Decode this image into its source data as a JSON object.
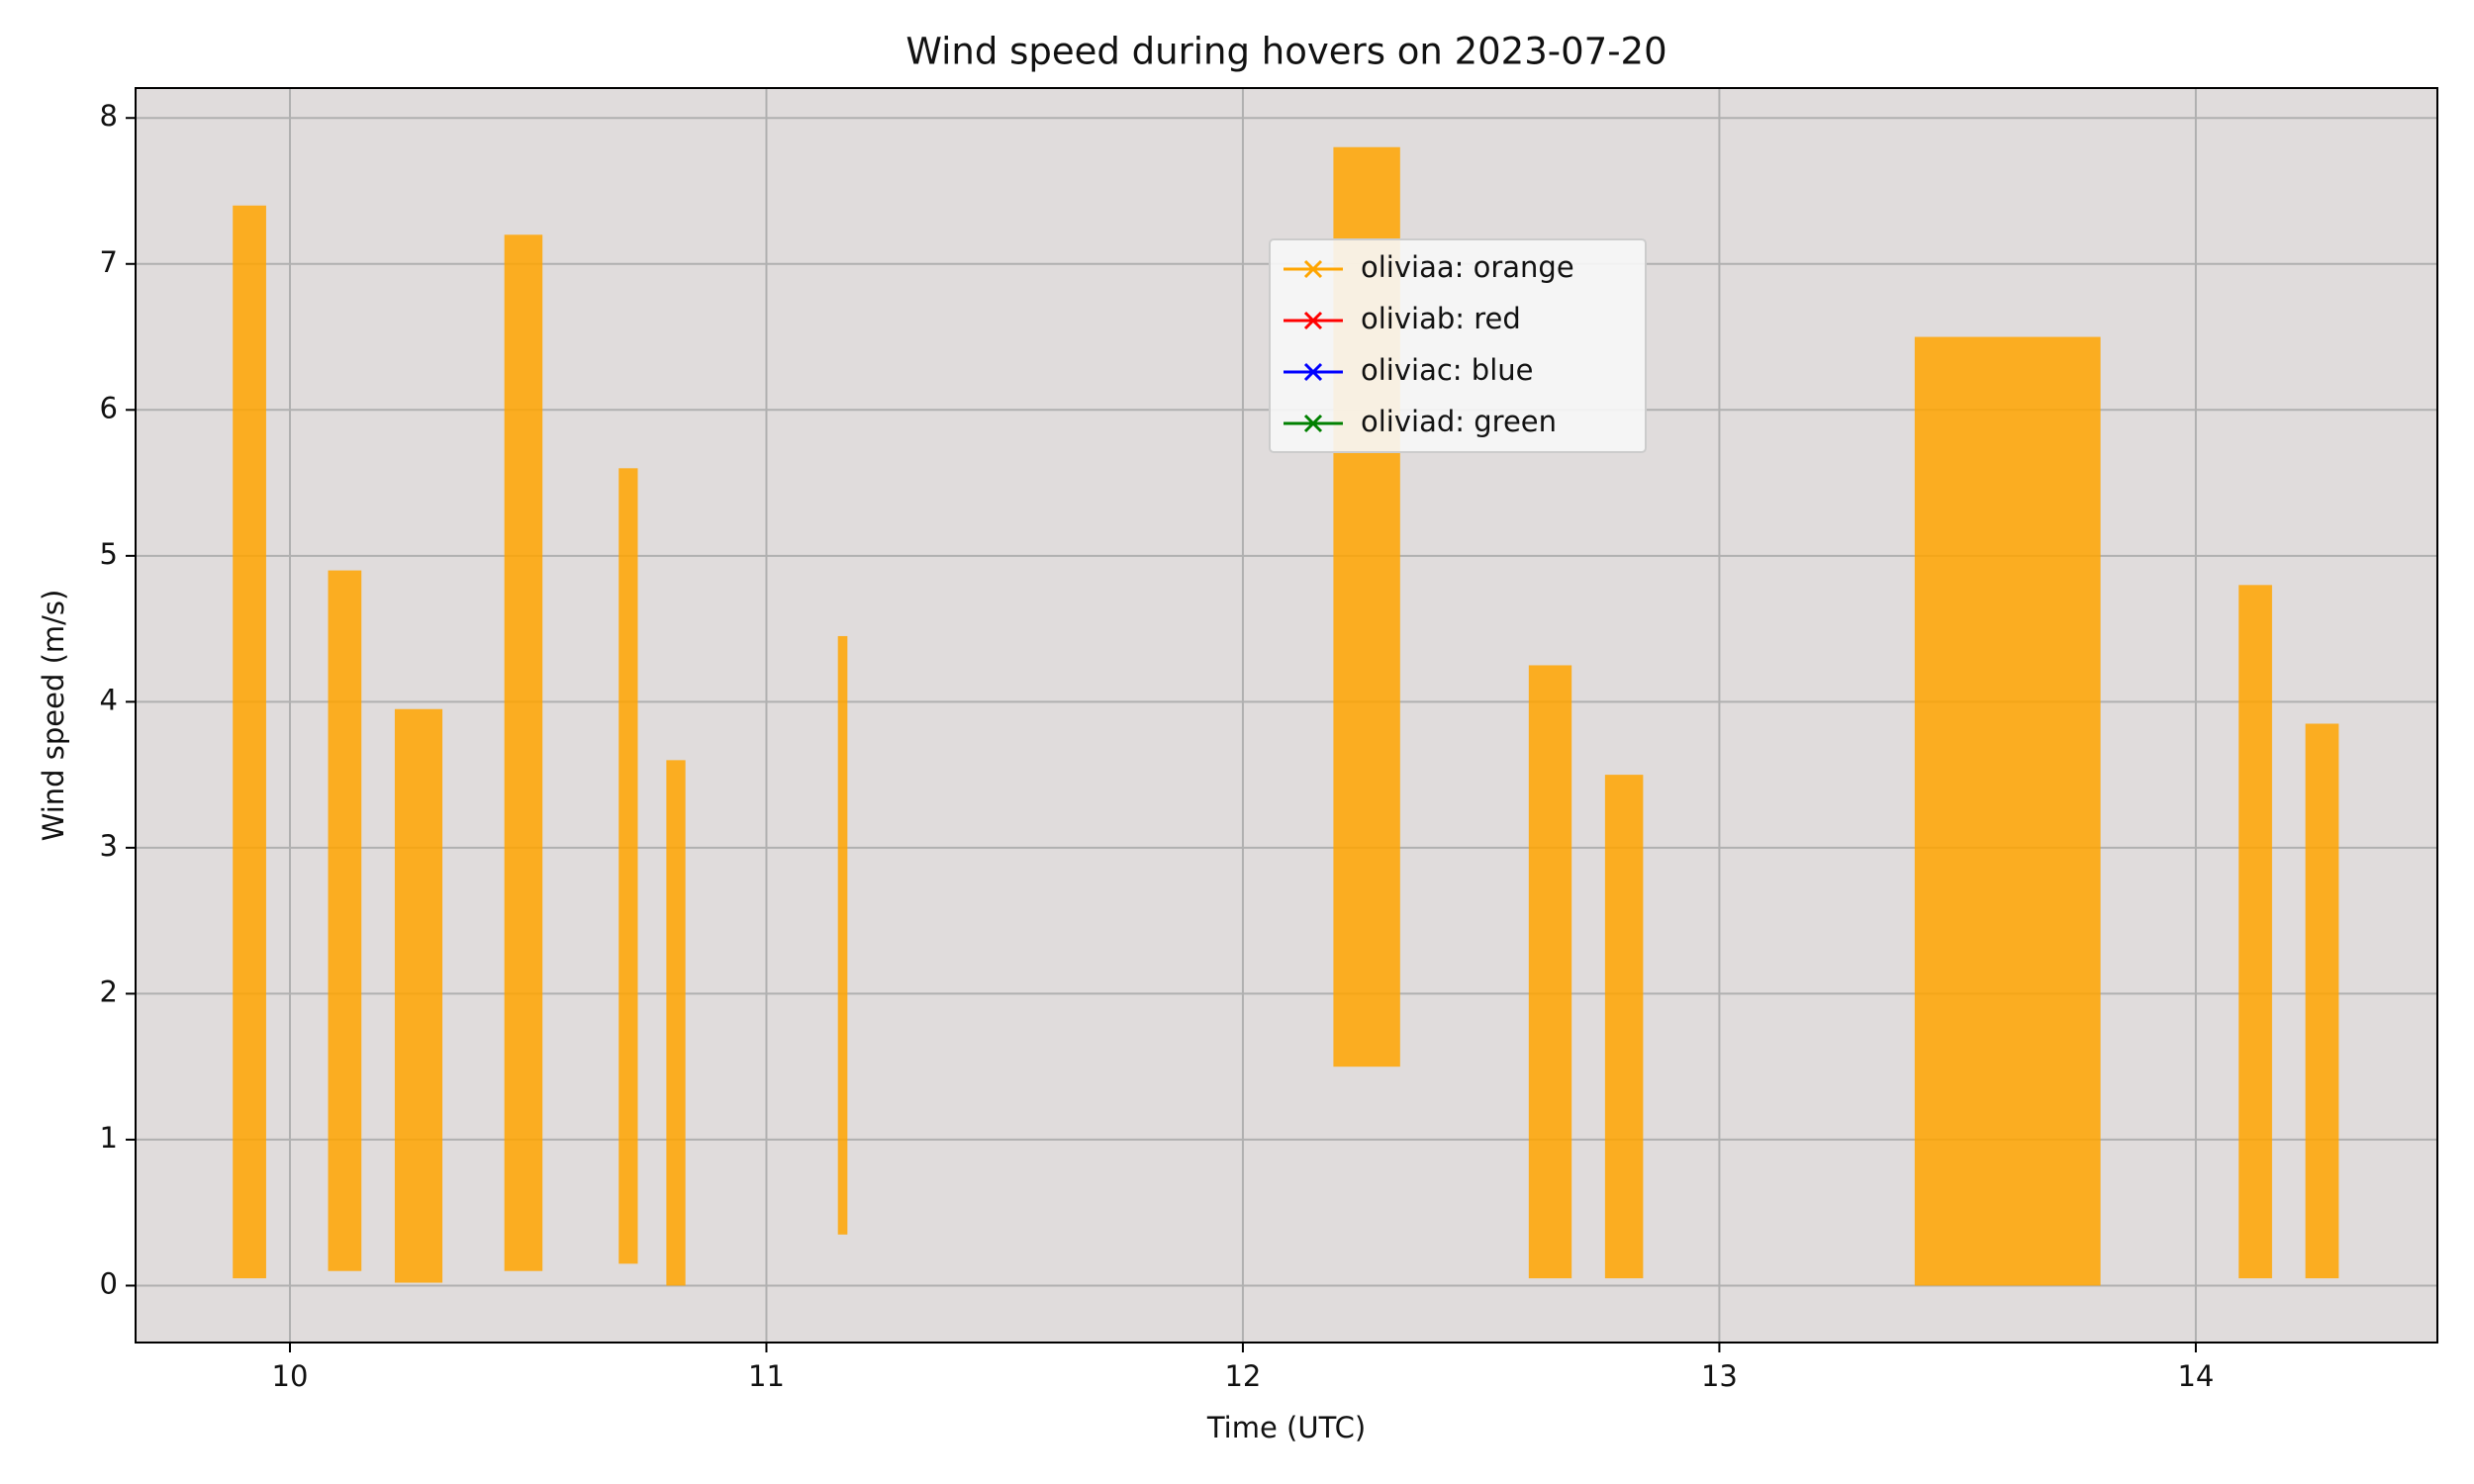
{
  "chart_data": {
    "type": "scatter",
    "title": "Wind speed during hovers on 2023-07-20",
    "xlabel": "Time (UTC)",
    "ylabel": "Wind speed (m/s)",
    "xlim": [
      9.676,
      14.507
    ],
    "ylim": [
      -0.39,
      8.205
    ],
    "xticks": [
      10,
      11,
      12,
      13,
      14
    ],
    "yticks": [
      0,
      1,
      2,
      3,
      4,
      5,
      6,
      7,
      8
    ],
    "grid": true,
    "legend": "upper center",
    "series": [
      {
        "name": "oliviaa: orange",
        "color": "orange",
        "marker": "x",
        "x_ranges": [
          [
            9.88,
            9.95
          ],
          [
            10.08,
            10.15
          ],
          [
            10.22,
            10.32
          ],
          [
            10.45,
            10.53
          ],
          [
            10.69,
            10.73
          ],
          [
            10.79,
            10.83
          ],
          [
            11.15,
            11.17
          ],
          [
            12.19,
            12.33
          ],
          [
            12.6,
            12.69
          ],
          [
            12.76,
            12.84
          ],
          [
            13.41,
            13.8
          ],
          [
            14.09,
            14.16
          ],
          [
            14.23,
            14.3
          ]
        ],
        "value_ranges": [
          [
            0.05,
            7.4
          ],
          [
            0.1,
            4.9
          ],
          [
            0.02,
            3.95
          ],
          [
            0.1,
            7.2
          ],
          [
            0.15,
            5.6
          ],
          [
            0.0,
            3.6
          ],
          [
            0.35,
            4.45
          ],
          [
            1.5,
            7.8
          ],
          [
            0.05,
            4.25
          ],
          [
            0.05,
            3.5
          ],
          [
            0.0,
            6.5
          ],
          [
            0.05,
            4.8
          ],
          [
            0.05,
            3.85
          ]
        ]
      },
      {
        "name": "oliviab: red",
        "color": "red",
        "marker": "x",
        "x_ranges": [],
        "value_ranges": []
      },
      {
        "name": "oliviac: blue",
        "color": "blue",
        "marker": "x",
        "x_ranges": [],
        "value_ranges": []
      },
      {
        "name": "oliviad: green",
        "color": "green",
        "marker": "x",
        "x_ranges": [],
        "value_ranges": []
      }
    ]
  }
}
